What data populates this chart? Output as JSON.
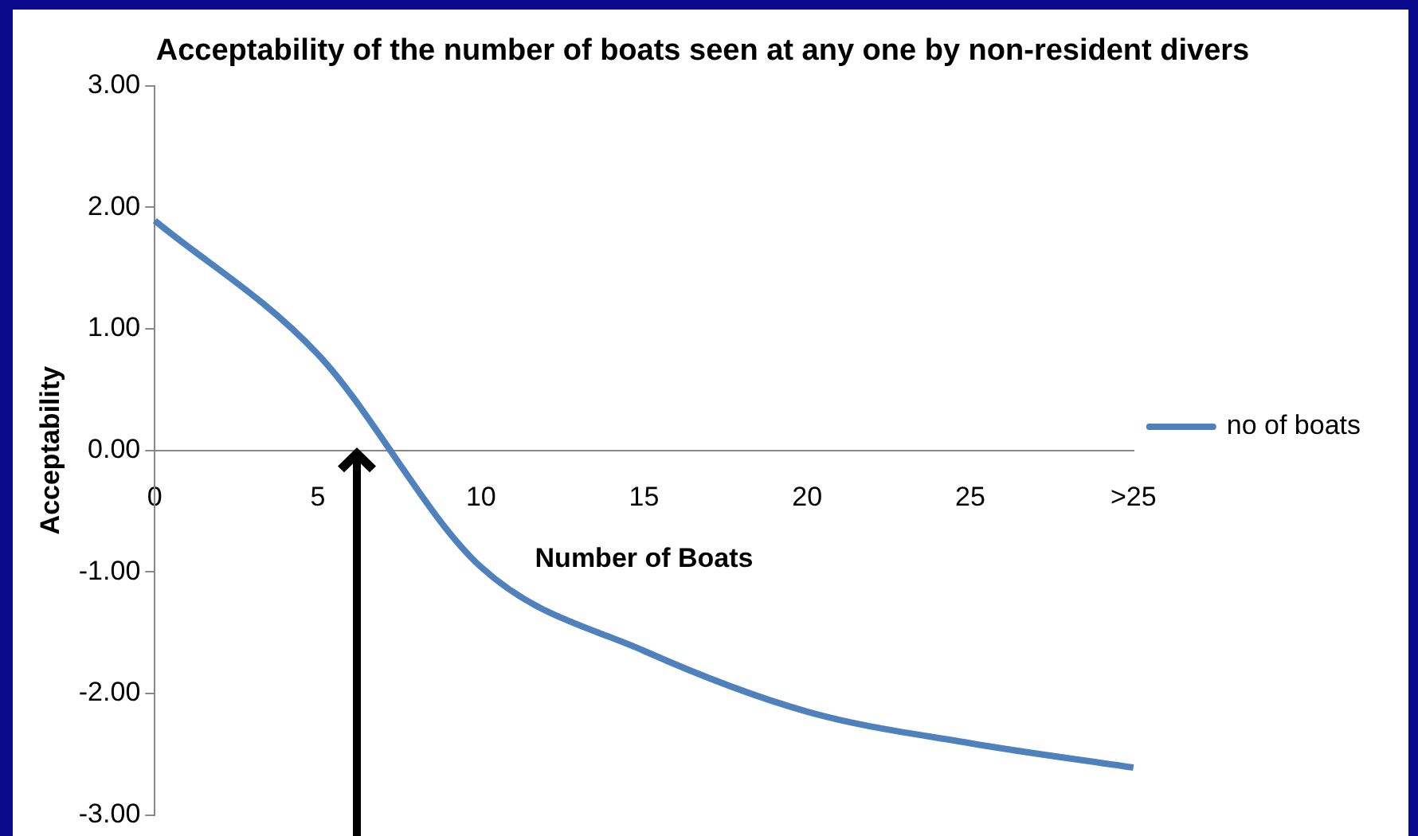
{
  "chart_data": {
    "type": "line",
    "title": "Acceptability of the number of boats seen at any one by non-resident divers",
    "xlabel": "Number of Boats",
    "ylabel": "Acceptability",
    "categories": [
      "0",
      "5",
      "10",
      "15",
      "20",
      "25",
      ">25"
    ],
    "series": [
      {
        "name": "no of boats",
        "color": "#4f81bd",
        "values": [
          1.89,
          0.79,
          -0.96,
          -1.65,
          -2.15,
          -2.41,
          -2.61
        ]
      }
    ],
    "ylim": [
      -3,
      3
    ],
    "yticks": [
      {
        "value": -3,
        "label": "-3.00"
      },
      {
        "value": -2,
        "label": "-2.00"
      },
      {
        "value": -1,
        "label": "-1.00"
      },
      {
        "value": 0,
        "label": "0.00"
      },
      {
        "value": 1,
        "label": "1.00"
      },
      {
        "value": 2,
        "label": "2.00"
      },
      {
        "value": 3,
        "label": "3.00"
      }
    ],
    "grid": false,
    "legend": "right",
    "marker": "none",
    "line_style": "solid"
  }
}
